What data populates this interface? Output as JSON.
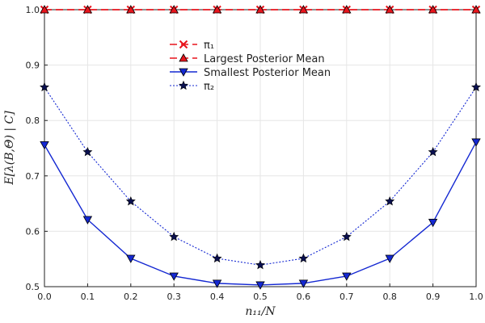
{
  "chart_data": {
    "type": "line",
    "title": "",
    "xlabel": "n₁₁/N",
    "ylabel": "E[λ(B,Θ) | C]",
    "xlim": [
      0.0,
      1.0
    ],
    "ylim": [
      0.5,
      1.0
    ],
    "xticks": [
      "0.0",
      "0.1",
      "0.2",
      "0.3",
      "0.4",
      "0.5",
      "0.6",
      "0.7",
      "0.8",
      "0.9",
      "1.0"
    ],
    "yticks": [
      "0.5",
      "0.6",
      "0.7",
      "0.8",
      "0.9",
      "1.0"
    ],
    "grid": true,
    "legend_position": "top-center",
    "x": [
      0.0,
      0.1,
      0.2,
      0.3,
      0.4,
      0.5,
      0.6,
      0.7,
      0.8,
      0.9,
      1.0
    ],
    "series": [
      {
        "name": "π₁",
        "values": [
          1.0,
          1.0,
          1.0,
          1.0,
          1.0,
          1.0,
          1.0,
          1.0,
          1.0,
          1.0,
          1.0
        ],
        "color": "#e8141c",
        "line": "dashed",
        "marker": "cross"
      },
      {
        "name": "Largest Posterior Mean",
        "values": [
          1.0,
          1.0,
          1.0,
          1.0,
          1.0,
          1.0,
          1.0,
          1.0,
          1.0,
          1.0,
          1.0
        ],
        "color": "#e8141c",
        "line": "dashed",
        "marker": "triangle-up"
      },
      {
        "name": "Smallest Posterior Mean",
        "values": [
          0.756,
          0.621,
          0.551,
          0.519,
          0.506,
          0.503,
          0.506,
          0.519,
          0.551,
          0.616,
          0.761
        ],
        "color": "#1428d2",
        "line": "solid",
        "marker": "triangle-down"
      },
      {
        "name": "π₂",
        "values": [
          0.86,
          0.743,
          0.654,
          0.59,
          0.551,
          0.539,
          0.551,
          0.59,
          0.654,
          0.743,
          0.86
        ],
        "color": "#1428d2",
        "line": "dotted",
        "marker": "star"
      }
    ]
  }
}
